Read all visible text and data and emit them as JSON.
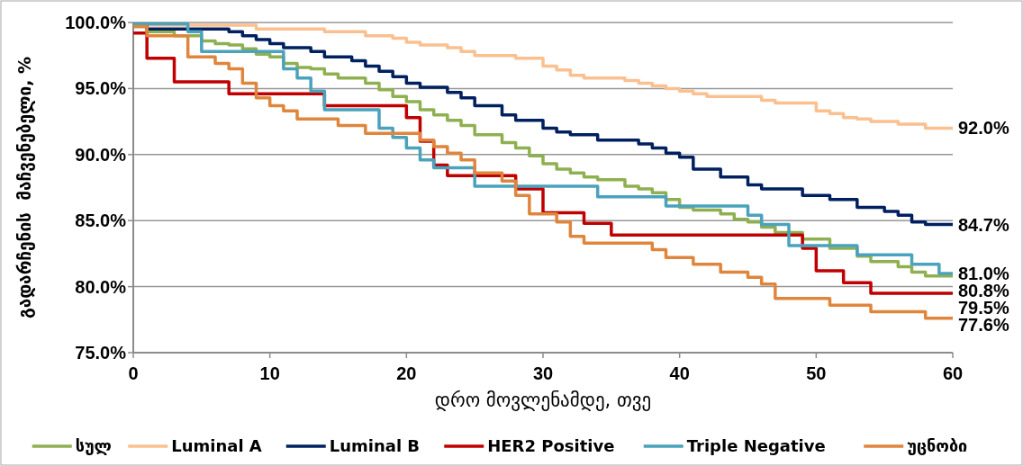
{
  "chart_data": {
    "type": "step",
    "xlabel": "დრო მოვლენამდე, თვე",
    "ylabel": "გადარჩენის  მაჩვენებელი, %",
    "xlim": [
      0,
      60
    ],
    "xticks": [
      0,
      10,
      20,
      30,
      40,
      50,
      60
    ],
    "ylim": [
      75,
      100
    ],
    "yticks": [
      {
        "value": 75,
        "label": "75.0%"
      },
      {
        "value": 80,
        "label": "80.0%"
      },
      {
        "value": 85,
        "label": "85.0%"
      },
      {
        "value": 90,
        "label": "90.0%"
      },
      {
        "value": 95,
        "label": "95.0%"
      },
      {
        "value": 100,
        "label": "100.0%"
      }
    ],
    "grid": "y",
    "legend": "bottom",
    "marker": "none",
    "line_style": "solid",
    "series": [
      {
        "name": "სულ",
        "color": "#8fb050",
        "x": [
          0,
          1,
          3,
          5,
          6,
          7,
          8,
          9,
          10,
          11,
          12,
          13,
          14,
          15,
          17,
          18,
          19,
          20,
          21,
          22,
          23,
          24,
          25,
          27,
          28,
          29,
          30,
          31,
          32,
          33,
          34,
          36,
          37,
          38,
          39,
          40,
          41,
          43,
          44,
          45,
          46,
          47,
          49,
          51,
          53,
          54,
          56,
          57,
          58,
          60
        ],
        "values": [
          99.7,
          99.3,
          99.0,
          98.6,
          98.4,
          98.3,
          98.0,
          97.6,
          97.4,
          96.9,
          96.6,
          96.5,
          96.1,
          95.8,
          95.4,
          94.9,
          94.4,
          94.0,
          93.4,
          93.0,
          92.6,
          92.2,
          91.5,
          90.9,
          90.5,
          89.9,
          89.3,
          88.9,
          88.6,
          88.3,
          88.1,
          87.6,
          87.4,
          87.1,
          86.6,
          86.0,
          85.8,
          85.5,
          85.1,
          84.9,
          84.5,
          84.1,
          83.6,
          82.9,
          82.3,
          81.9,
          81.5,
          81.1,
          80.8,
          80.8
        ],
        "value_labels": [
          null,
          null,
          null,
          null,
          null,
          null,
          null,
          null,
          null,
          null,
          null,
          null,
          null,
          null,
          null,
          null,
          null,
          null,
          null,
          null,
          null,
          null,
          null,
          null,
          null,
          null,
          null,
          null,
          null,
          null,
          null,
          null,
          null,
          null,
          null,
          null,
          null,
          null,
          null,
          null,
          null,
          null,
          null,
          null,
          null,
          null,
          null,
          null,
          null,
          "80.8%"
        ]
      },
      {
        "name": "Luminal A",
        "color": "#fac090",
        "x": [
          0,
          9,
          14,
          17,
          19,
          20,
          21,
          23,
          24,
          25,
          28,
          30,
          31,
          32,
          33,
          36,
          37,
          38,
          39,
          40,
          41,
          42,
          46,
          47,
          50,
          51,
          52,
          53,
          54,
          56,
          58,
          60
        ],
        "values": [
          99.8,
          99.5,
          99.3,
          99.0,
          98.8,
          98.5,
          98.3,
          98.1,
          97.8,
          97.5,
          97.3,
          96.7,
          96.4,
          96.0,
          95.8,
          95.6,
          95.4,
          95.2,
          95.0,
          94.8,
          94.6,
          94.4,
          94.1,
          93.9,
          93.3,
          93.1,
          92.8,
          92.7,
          92.5,
          92.3,
          92.0,
          92.0
        ],
        "value_labels": [
          null,
          null,
          null,
          null,
          null,
          null,
          null,
          null,
          null,
          null,
          null,
          null,
          null,
          null,
          null,
          null,
          null,
          null,
          null,
          null,
          null,
          null,
          null,
          null,
          null,
          null,
          null,
          null,
          null,
          null,
          null,
          "92.0%"
        ]
      },
      {
        "name": "Luminal B",
        "color": "#002060",
        "x": [
          0,
          1,
          7,
          8,
          9,
          10,
          11,
          13,
          14,
          16,
          17,
          18,
          19,
          20,
          21,
          23,
          24,
          25,
          27,
          28,
          30,
          31,
          32,
          34,
          37,
          38,
          39,
          40,
          41,
          43,
          45,
          46,
          49,
          51,
          53,
          55,
          56,
          57,
          58,
          60
        ],
        "values": [
          99.8,
          99.5,
          99.3,
          99.0,
          98.7,
          98.4,
          98.1,
          97.8,
          97.4,
          97.1,
          96.7,
          96.3,
          95.9,
          95.4,
          95.1,
          94.7,
          94.3,
          93.7,
          93.0,
          92.6,
          92.0,
          91.7,
          91.5,
          91.1,
          90.8,
          90.5,
          90.1,
          89.8,
          88.9,
          88.3,
          87.7,
          87.4,
          86.9,
          86.6,
          86.0,
          85.7,
          85.4,
          84.9,
          84.7,
          84.7
        ],
        "value_labels": [
          null,
          null,
          null,
          null,
          null,
          null,
          null,
          null,
          null,
          null,
          null,
          null,
          null,
          null,
          null,
          null,
          null,
          null,
          null,
          null,
          null,
          null,
          null,
          null,
          null,
          null,
          null,
          null,
          null,
          null,
          null,
          null,
          null,
          null,
          null,
          null,
          null,
          null,
          null,
          "84.7%"
        ]
      },
      {
        "name": "HER2 Positive",
        "color": "#c00000",
        "x": [
          0,
          1,
          3,
          7,
          14,
          20,
          21,
          22,
          23,
          28,
          30,
          33,
          35,
          49,
          50,
          52,
          54,
          60
        ],
        "values": [
          99.2,
          97.3,
          95.5,
          94.6,
          93.7,
          92.8,
          91.0,
          89.2,
          88.4,
          87.4,
          85.6,
          84.8,
          83.9,
          82.9,
          81.2,
          80.3,
          79.5,
          79.5
        ],
        "value_labels": [
          null,
          null,
          null,
          null,
          null,
          null,
          null,
          null,
          null,
          null,
          null,
          null,
          null,
          null,
          null,
          null,
          null,
          "79.5%"
        ]
      },
      {
        "name": "Triple Negative",
        "color": "#4aa2bd",
        "x": [
          0,
          4,
          5,
          11,
          12,
          13,
          14,
          18,
          19,
          20,
          21,
          22,
          25,
          34,
          39,
          45,
          46,
          48,
          53,
          57,
          59,
          60
        ],
        "values": [
          99.9,
          99.3,
          97.8,
          96.5,
          95.8,
          94.8,
          93.4,
          92.0,
          91.3,
          90.5,
          89.6,
          89.0,
          87.6,
          86.8,
          86.1,
          85.4,
          84.7,
          83.1,
          82.4,
          81.7,
          81.0,
          81.0
        ],
        "value_labels": [
          null,
          null,
          null,
          null,
          null,
          null,
          null,
          null,
          null,
          null,
          null,
          null,
          null,
          null,
          null,
          null,
          null,
          null,
          null,
          null,
          null,
          "81.0%"
        ]
      },
      {
        "name": "უცნობი",
        "color": "#e0853c",
        "x": [
          0,
          1,
          4,
          6,
          7,
          8,
          9,
          10,
          11,
          12,
          15,
          17,
          21,
          22,
          23,
          24,
          25,
          27,
          28,
          29,
          31,
          32,
          33,
          38,
          39,
          41,
          43,
          45,
          46,
          47,
          51,
          54,
          58,
          60
        ],
        "values": [
          99.7,
          99.0,
          97.4,
          96.9,
          96.5,
          95.4,
          94.3,
          93.7,
          93.3,
          92.7,
          92.2,
          91.6,
          91.1,
          90.6,
          90.1,
          89.6,
          88.6,
          88.0,
          86.9,
          85.5,
          84.9,
          83.8,
          83.3,
          82.8,
          82.2,
          81.7,
          81.1,
          80.7,
          80.2,
          79.1,
          78.6,
          78.1,
          77.6,
          77.6
        ],
        "value_labels": [
          null,
          null,
          null,
          null,
          null,
          null,
          null,
          null,
          null,
          null,
          null,
          null,
          null,
          null,
          null,
          null,
          null,
          null,
          null,
          null,
          null,
          null,
          null,
          null,
          null,
          null,
          null,
          null,
          null,
          null,
          null,
          null,
          null,
          "77.6%"
        ]
      }
    ]
  }
}
